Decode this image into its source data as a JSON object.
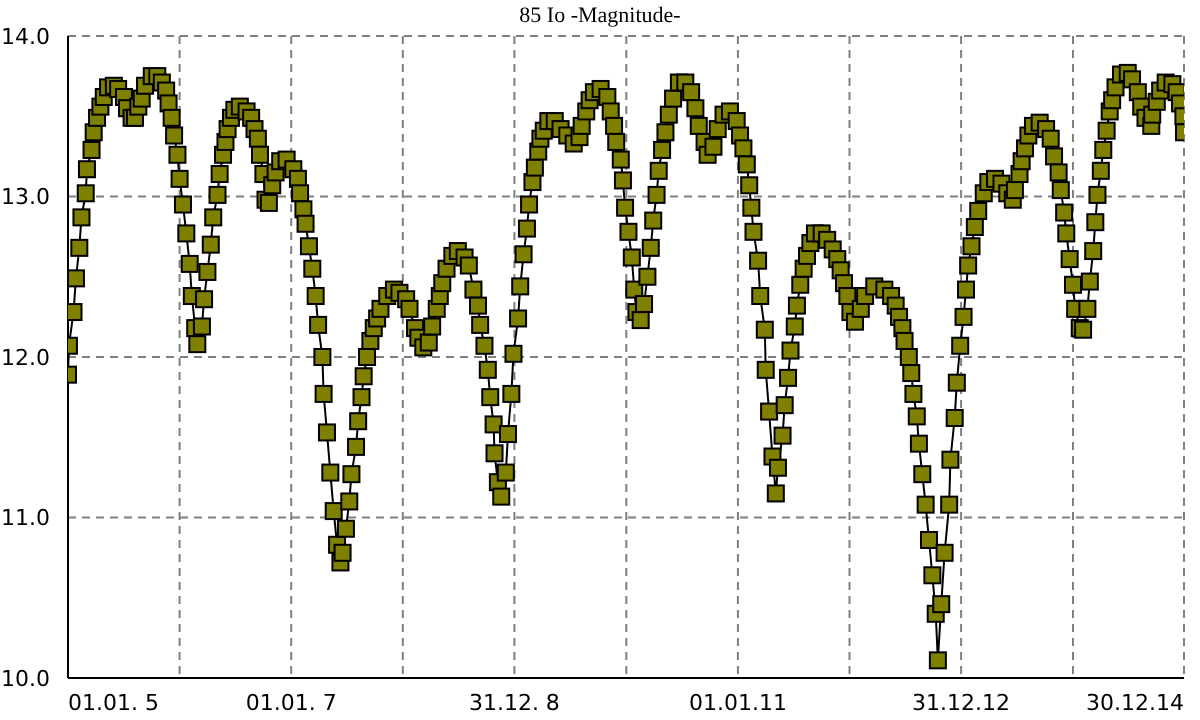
{
  "chart_data": {
    "type": "line",
    "title": "85 Io -Magnitude-",
    "color": "#808000",
    "marker": "square",
    "grid": true,
    "x": [
      "2005-01-01",
      "2005-01-04",
      "2005-01-19",
      "2005-01-27",
      "2005-02-07",
      "2005-02-14",
      "2005-02-28",
      "2005-03-04",
      "2005-03-19",
      "2005-03-26",
      "2005-04-06",
      "2005-04-17",
      "2005-04-28",
      "2005-05-12",
      "2005-05-31",
      "2005-06-14",
      "2005-07-03",
      "2005-07-13",
      "2005-07-28",
      "2005-08-08",
      "2005-08-19",
      "2005-08-30",
      "2005-09-10",
      "2005-10-02",
      "2005-10-20",
      "2005-11-04",
      "2005-11-18",
      "2005-11-26",
      "2005-12-06",
      "2005-12-14",
      "2005-12-25",
      "2006-01-01",
      "2006-01-12",
      "2006-01-23",
      "2006-02-03",
      "2006-02-10",
      "2006-02-21",
      "2006-02-28",
      "2006-03-15",
      "2006-03-22",
      "2006-04-02",
      "2006-04-13",
      "2006-04-21",
      "2006-05-05",
      "2006-05-12",
      "2006-05-23",
      "2006-05-31",
      "2006-06-07",
      "2006-06-18",
      "2006-06-29",
      "2006-07-17",
      "2006-08-08",
      "2006-08-23",
      "2006-09-03",
      "2006-09-14",
      "2006-09-21",
      "2006-10-02",
      "2006-10-09",
      "2006-10-20",
      "2006-10-31",
      "2006-11-11",
      "2006-11-26",
      "2006-12-17",
      "2007-01-08",
      "2007-01-23",
      "2007-01-30",
      "2007-02-10",
      "2007-02-17",
      "2007-02-28",
      "2007-03-11",
      "2007-03-22",
      "2007-03-30",
      "2007-04-13",
      "2007-04-17",
      "2007-04-28",
      "2007-05-09",
      "2007-05-20",
      "2007-05-31",
      "2007-06-11",
      "2007-06-18",
      "2007-06-29",
      "2007-07-10",
      "2007-07-17",
      "2007-08-01",
      "2007-08-08",
      "2007-08-19",
      "2007-08-26",
      "2007-09-06",
      "2007-09-17",
      "2007-09-28",
      "2007-10-09",
      "2007-10-20",
      "2007-11-11",
      "2007-12-03",
      "2007-12-21",
      "2008-01-12",
      "2008-01-23",
      "2008-02-10",
      "2008-02-21",
      "2008-03-08",
      "2008-03-26",
      "2008-04-06",
      "2008-04-21",
      "2008-05-01",
      "2008-05-09",
      "2008-05-23",
      "2008-06-11",
      "2008-06-29",
      "2008-07-21",
      "2008-08-04",
      "2008-08-19",
      "2008-09-03",
      "2008-09-10",
      "2008-09-24",
      "2008-10-05",
      "2008-10-13",
      "2008-10-24",
      "2008-10-27",
      "2008-11-07",
      "2008-11-18",
      "2008-12-03",
      "2008-12-10",
      "2008-12-21",
      "2008-12-28",
      "2009-01-12",
      "2009-01-19",
      "2009-01-30",
      "2009-02-10",
      "2009-02-17",
      "2009-02-28",
      "2009-03-08",
      "2009-03-19",
      "2009-03-26",
      "2009-04-06",
      "2009-04-21",
      "2009-05-12",
      "2009-05-31",
      "2009-06-22",
      "2009-07-13",
      "2009-08-01",
      "2009-08-08",
      "2009-08-23",
      "2009-09-03",
      "2009-09-17",
      "2009-10-09",
      "2009-10-31",
      "2009-11-11",
      "2009-11-22",
      "2009-11-29",
      "2009-12-14",
      "2009-12-21",
      "2009-12-28",
      "2010-01-08",
      "2010-01-19",
      "2010-01-27",
      "2010-02-03",
      "2010-02-17",
      "2010-02-28",
      "2010-03-11",
      "2010-03-22",
      "2010-03-30",
      "2010-04-10",
      "2010-04-17",
      "2010-04-28",
      "2010-05-09",
      "2010-05-20",
      "2010-06-03",
      "2010-06-22",
      "2010-07-13",
      "2010-08-01",
      "2010-08-15",
      "2010-08-26",
      "2010-09-14",
      "2010-09-24",
      "2010-10-13",
      "2010-10-27",
      "2010-11-15",
      "2010-12-06",
      "2010-12-28",
      "2011-01-08",
      "2011-01-19",
      "2011-01-30",
      "2011-02-07",
      "2011-02-14",
      "2011-02-21",
      "2011-03-08",
      "2011-03-15",
      "2011-03-30",
      "2011-04-02",
      "2011-04-13",
      "2011-04-24",
      "2011-05-05",
      "2011-05-12",
      "2011-05-27",
      "2011-06-03",
      "2011-06-14",
      "2011-06-22",
      "2011-07-06",
      "2011-07-13",
      "2011-07-24",
      "2011-08-04",
      "2011-08-15",
      "2011-08-26",
      "2011-09-10",
      "2011-10-02",
      "2011-10-20",
      "2011-11-07",
      "2011-11-22",
      "2011-12-03",
      "2011-12-14",
      "2011-12-25",
      "2012-01-04",
      "2012-01-19",
      "2012-02-07",
      "2012-02-21",
      "2012-03-22",
      "2012-04-24",
      "2012-05-16",
      "2012-05-31",
      "2012-06-11",
      "2012-06-22",
      "2012-06-29",
      "2012-07-13",
      "2012-07-21",
      "2012-07-28",
      "2012-08-08",
      "2012-08-15",
      "2012-08-26",
      "2012-09-06",
      "2012-09-17",
      "2012-09-28",
      "2012-10-09",
      "2012-10-16",
      "2012-10-27",
      "2012-11-07",
      "2012-11-22",
      "2012-11-26",
      "2012-12-10",
      "2012-12-17",
      "2012-12-28",
      "2013-01-08",
      "2013-01-16",
      "2013-01-23",
      "2013-02-03",
      "2013-02-14",
      "2013-02-25",
      "2013-03-15",
      "2013-03-30",
      "2013-04-21",
      "2013-05-12",
      "2013-05-31",
      "2013-06-18",
      "2013-06-25",
      "2013-07-10",
      "2013-07-17",
      "2013-07-28",
      "2013-08-08",
      "2013-08-23",
      "2013-09-14",
      "2013-10-05",
      "2013-10-20",
      "2013-10-31",
      "2013-11-15",
      "2013-11-22",
      "2013-12-03",
      "2013-12-10",
      "2013-12-21",
      "2014-01-01",
      "2014-01-08",
      "2014-01-23",
      "2014-02-03",
      "2014-02-17",
      "2014-02-25",
      "2014-03-08",
      "2014-03-15",
      "2014-03-22",
      "2014-04-02",
      "2014-04-10",
      "2014-04-21",
      "2014-05-01",
      "2014-05-09",
      "2014-05-20",
      "2014-06-07",
      "2014-06-29",
      "2014-07-13",
      "2014-08-01",
      "2014-08-12",
      "2014-08-26",
      "2014-09-14",
      "2014-09-17",
      "2014-10-02",
      "2014-10-13",
      "2014-10-31",
      "2014-11-22",
      "2014-12-06",
      "2014-12-17",
      "2014-12-28",
      "2014-12-30"
    ],
    "values": [
      11.89,
      12.07,
      12.28,
      12.49,
      12.68,
      12.87,
      13.02,
      13.17,
      13.29,
      13.4,
      13.49,
      13.56,
      13.62,
      13.68,
      13.69,
      13.67,
      13.62,
      13.55,
      13.49,
      13.49,
      13.56,
      13.61,
      13.69,
      13.75,
      13.75,
      13.71,
      13.66,
      13.58,
      13.49,
      13.38,
      13.26,
      13.11,
      12.95,
      12.77,
      12.58,
      12.38,
      12.18,
      12.08,
      12.19,
      12.36,
      12.53,
      12.7,
      12.87,
      13.01,
      13.14,
      13.26,
      13.34,
      13.42,
      13.49,
      13.54,
      13.56,
      13.53,
      13.49,
      13.42,
      13.36,
      13.26,
      13.14,
      12.98,
      12.96,
      13.07,
      13.15,
      13.22,
      13.23,
      13.17,
      13.11,
      13.02,
      12.92,
      12.83,
      12.69,
      12.55,
      12.38,
      12.2,
      12.0,
      11.77,
      11.53,
      11.28,
      11.04,
      10.83,
      10.72,
      10.78,
      10.93,
      11.1,
      11.27,
      11.44,
      11.6,
      11.75,
      11.88,
      12.0,
      12.1,
      12.18,
      12.24,
      12.3,
      12.38,
      12.42,
      12.4,
      12.36,
      12.3,
      12.18,
      12.12,
      12.06,
      12.09,
      12.19,
      12.3,
      12.38,
      12.46,
      12.55,
      12.63,
      12.66,
      12.62,
      12.57,
      12.42,
      12.32,
      12.2,
      12.07,
      11.92,
      11.75,
      11.58,
      11.4,
      11.22,
      11.13,
      11.28,
      11.52,
      11.77,
      12.02,
      12.24,
      12.44,
      12.64,
      12.8,
      12.95,
      13.09,
      13.18,
      13.28,
      13.36,
      13.41,
      13.47,
      13.47,
      13.42,
      13.38,
      13.33,
      13.37,
      13.44,
      13.53,
      13.6,
      13.65,
      13.67,
      13.62,
      13.53,
      13.44,
      13.34,
      13.23,
      13.1,
      12.93,
      12.78,
      12.62,
      12.42,
      12.28,
      12.23,
      12.33,
      12.5,
      12.68,
      12.85,
      13.01,
      13.16,
      13.29,
      13.4,
      13.51,
      13.61,
      13.71,
      13.71,
      13.65,
      13.55,
      13.44,
      13.34,
      13.26,
      13.31,
      13.42,
      13.51,
      13.53,
      13.47,
      13.38,
      13.3,
      13.2,
      13.07,
      12.93,
      12.78,
      12.6,
      12.38,
      12.17,
      11.92,
      11.66,
      11.38,
      11.15,
      11.31,
      11.51,
      11.7,
      11.87,
      12.04,
      12.19,
      12.32,
      12.45,
      12.55,
      12.63,
      12.71,
      12.77,
      12.77,
      12.73,
      12.67,
      12.61,
      12.54,
      12.46,
      12.38,
      12.28,
      12.22,
      12.3,
      12.38,
      12.44,
      12.42,
      12.38,
      12.32,
      12.25,
      12.18,
      12.1,
      12.0,
      11.9,
      11.77,
      11.63,
      11.46,
      11.27,
      11.08,
      10.86,
      10.64,
      10.4,
      10.11,
      10.46,
      10.78,
      11.08,
      11.36,
      11.62,
      11.84,
      12.07,
      12.25,
      12.42,
      12.57,
      12.69,
      12.81,
      12.91,
      13.02,
      13.09,
      13.11,
      13.08,
      13.02,
      12.98,
      13.04,
      13.14,
      13.22,
      13.3,
      13.38,
      13.44,
      13.46,
      13.42,
      13.36,
      13.25,
      13.15,
      13.04,
      12.9,
      12.77,
      12.61,
      12.45,
      12.3,
      12.18,
      12.17,
      12.3,
      12.47,
      12.66,
      12.84,
      13.01,
      13.16,
      13.29,
      13.41,
      13.53,
      13.6,
      13.68,
      13.76,
      13.77,
      13.73,
      13.65,
      13.56,
      13.49,
      13.44,
      13.51,
      13.59,
      13.66,
      13.71,
      13.7,
      13.65,
      13.58,
      13.5,
      13.4
    ],
    "xlim": [
      "2005-01-01",
      "2014-12-30"
    ],
    "xticks": [
      {
        "value": "2005-01-01",
        "label": "01.01. 5"
      },
      {
        "value": "2006-01-01",
        "label": null
      },
      {
        "value": "2007-01-01",
        "label": "01.01. 7"
      },
      {
        "value": "2008-01-01",
        "label": null
      },
      {
        "value": "2008-12-31",
        "label": "31.12. 8"
      },
      {
        "value": "2010-01-01",
        "label": null
      },
      {
        "value": "2011-01-01",
        "label": "01.01.11"
      },
      {
        "value": "2012-01-01",
        "label": null
      },
      {
        "value": "2012-12-31",
        "label": "31.12.12"
      },
      {
        "value": "2014-01-01",
        "label": null
      },
      {
        "value": "2014-12-30",
        "label": "30.12.14"
      }
    ],
    "ylim": [
      10,
      14
    ],
    "yticks": [
      {
        "value": 10,
        "label": "10.0"
      },
      {
        "value": 11,
        "label": "11.0"
      },
      {
        "value": 12,
        "label": "12.0"
      },
      {
        "value": 13,
        "label": "13.0"
      },
      {
        "value": 14,
        "label": "14.0"
      }
    ]
  }
}
